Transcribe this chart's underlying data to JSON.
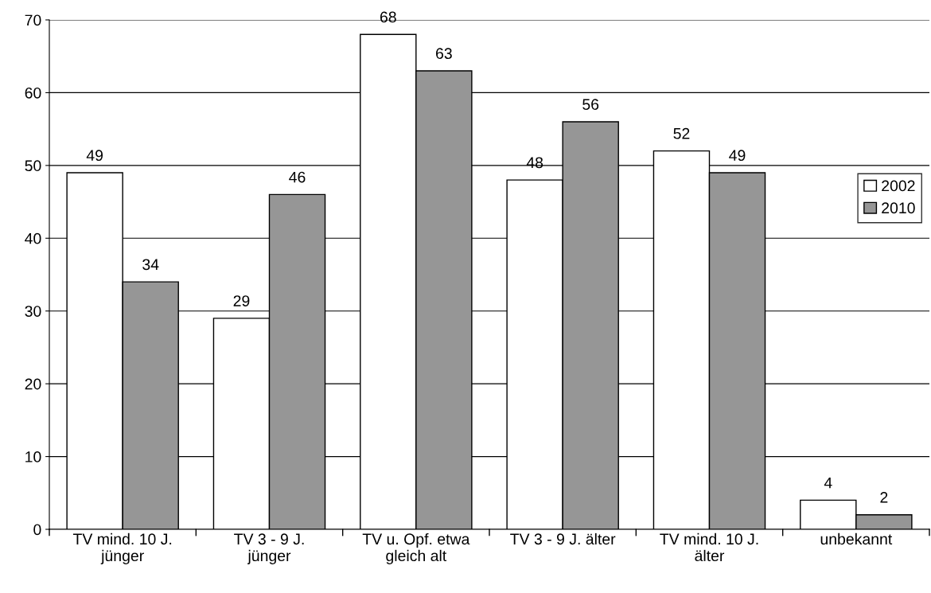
{
  "chart_data": {
    "type": "bar",
    "categories": [
      "TV mind. 10 J.\njünger",
      "TV 3 - 9 J.\njünger",
      "TV u. Opf. etwa\ngleich alt",
      "TV 3 - 9 J. älter",
      "TV mind. 10 J.\nälter",
      "unbekannt"
    ],
    "series": [
      {
        "name": "2002",
        "color": "#ffffff",
        "values": [
          49,
          29,
          68,
          48,
          52,
          4
        ]
      },
      {
        "name": "2010",
        "color": "#969696",
        "values": [
          34,
          46,
          63,
          56,
          49,
          2
        ]
      }
    ],
    "ylim": [
      0,
      70
    ],
    "yticks": [
      0,
      10,
      20,
      30,
      40,
      50,
      60,
      70
    ],
    "grid": "y",
    "legend": "right",
    "data_labels": true
  }
}
